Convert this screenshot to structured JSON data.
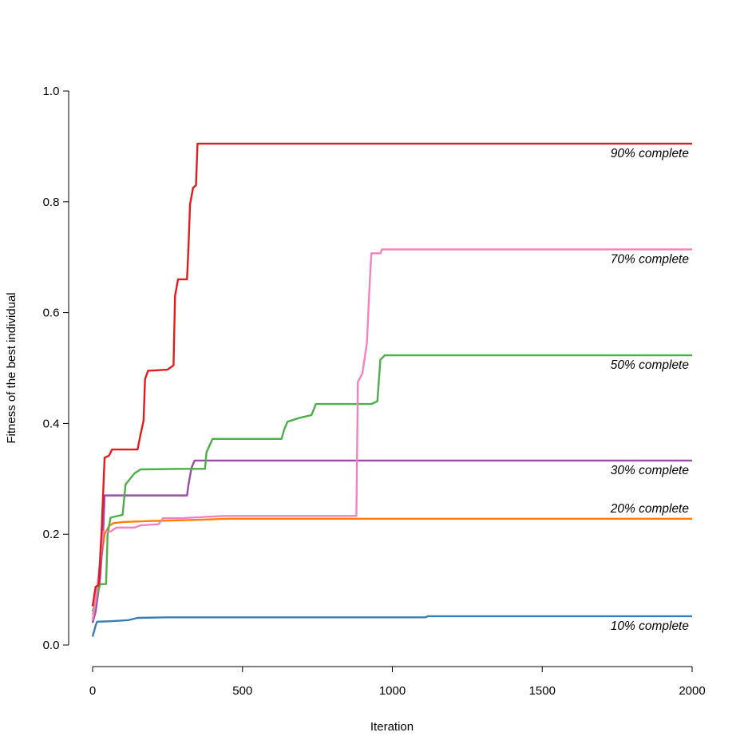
{
  "chart_data": {
    "type": "line",
    "title": "",
    "xlabel": "Iteration",
    "ylabel": "Fitness of the best individual",
    "xlim": [
      0,
      2000
    ],
    "ylim": [
      0,
      1.0
    ],
    "x_ticks": [
      "0",
      "500",
      "1000",
      "1500",
      "2000"
    ],
    "y_ticks": [
      "0.0",
      "0.2",
      "0.4",
      "0.6",
      "0.8",
      "1.0"
    ],
    "grid": false,
    "legend": "none",
    "series": [
      {
        "name": "10% complete",
        "color": "#377eb8",
        "points": [
          [
            0,
            0.015
          ],
          [
            5,
            0.025
          ],
          [
            10,
            0.035
          ],
          [
            15,
            0.042
          ],
          [
            60,
            0.043
          ],
          [
            120,
            0.045
          ],
          [
            150,
            0.049
          ],
          [
            250,
            0.05
          ],
          [
            600,
            0.05
          ],
          [
            1110,
            0.05
          ],
          [
            1120,
            0.052
          ],
          [
            1500,
            0.052
          ],
          [
            2000,
            0.052
          ]
        ]
      },
      {
        "name": "20% complete",
        "color": "#ff7f00",
        "points": [
          [
            0,
            0.055
          ],
          [
            10,
            0.065
          ],
          [
            20,
            0.1
          ],
          [
            30,
            0.16
          ],
          [
            40,
            0.2
          ],
          [
            55,
            0.215
          ],
          [
            70,
            0.22
          ],
          [
            100,
            0.222
          ],
          [
            200,
            0.224
          ],
          [
            350,
            0.226
          ],
          [
            450,
            0.228
          ],
          [
            1000,
            0.228
          ],
          [
            2000,
            0.228
          ]
        ]
      },
      {
        "name": "30% complete",
        "color": "#984ea3",
        "points": [
          [
            0,
            0.04
          ],
          [
            10,
            0.06
          ],
          [
            25,
            0.12
          ],
          [
            35,
            0.2
          ],
          [
            40,
            0.27
          ],
          [
            100,
            0.27
          ],
          [
            200,
            0.27
          ],
          [
            315,
            0.27
          ],
          [
            320,
            0.29
          ],
          [
            330,
            0.32
          ],
          [
            340,
            0.333
          ],
          [
            500,
            0.333
          ],
          [
            1000,
            0.333
          ],
          [
            2000,
            0.333
          ]
        ]
      },
      {
        "name": "50% complete",
        "color": "#4daf4a",
        "points": [
          [
            0,
            0.06
          ],
          [
            15,
            0.09
          ],
          [
            25,
            0.11
          ],
          [
            45,
            0.11
          ],
          [
            50,
            0.2
          ],
          [
            60,
            0.23
          ],
          [
            100,
            0.235
          ],
          [
            110,
            0.29
          ],
          [
            140,
            0.31
          ],
          [
            160,
            0.317
          ],
          [
            300,
            0.318
          ],
          [
            375,
            0.318
          ],
          [
            380,
            0.348
          ],
          [
            400,
            0.372
          ],
          [
            630,
            0.372
          ],
          [
            640,
            0.39
          ],
          [
            650,
            0.403
          ],
          [
            690,
            0.41
          ],
          [
            730,
            0.415
          ],
          [
            745,
            0.435
          ],
          [
            930,
            0.435
          ],
          [
            950,
            0.44
          ],
          [
            960,
            0.515
          ],
          [
            975,
            0.523
          ],
          [
            2000,
            0.523
          ]
        ]
      },
      {
        "name": "70% complete",
        "color": "#f781bf",
        "points": [
          [
            0,
            0.045
          ],
          [
            10,
            0.08
          ],
          [
            25,
            0.15
          ],
          [
            35,
            0.205
          ],
          [
            60,
            0.205
          ],
          [
            80,
            0.212
          ],
          [
            140,
            0.212
          ],
          [
            160,
            0.216
          ],
          [
            220,
            0.218
          ],
          [
            235,
            0.229
          ],
          [
            300,
            0.229
          ],
          [
            440,
            0.233
          ],
          [
            880,
            0.233
          ],
          [
            885,
            0.475
          ],
          [
            900,
            0.49
          ],
          [
            915,
            0.545
          ],
          [
            925,
            0.66
          ],
          [
            930,
            0.707
          ],
          [
            960,
            0.707
          ],
          [
            965,
            0.714
          ],
          [
            2000,
            0.714
          ]
        ]
      },
      {
        "name": "90% complete",
        "color": "#e41a1c",
        "points": [
          [
            0,
            0.07
          ],
          [
            10,
            0.105
          ],
          [
            20,
            0.108
          ],
          [
            30,
            0.205
          ],
          [
            40,
            0.338
          ],
          [
            55,
            0.342
          ],
          [
            65,
            0.353
          ],
          [
            150,
            0.353
          ],
          [
            160,
            0.38
          ],
          [
            170,
            0.405
          ],
          [
            175,
            0.48
          ],
          [
            185,
            0.495
          ],
          [
            250,
            0.497
          ],
          [
            270,
            0.505
          ],
          [
            275,
            0.63
          ],
          [
            285,
            0.66
          ],
          [
            315,
            0.66
          ],
          [
            320,
            0.72
          ],
          [
            325,
            0.795
          ],
          [
            335,
            0.825
          ],
          [
            345,
            0.83
          ],
          [
            350,
            0.905
          ],
          [
            2000,
            0.905
          ]
        ]
      }
    ],
    "annotations": [
      "90% complete",
      "70% complete",
      "50% complete",
      "30% complete",
      "20% complete",
      "10% complete"
    ]
  }
}
